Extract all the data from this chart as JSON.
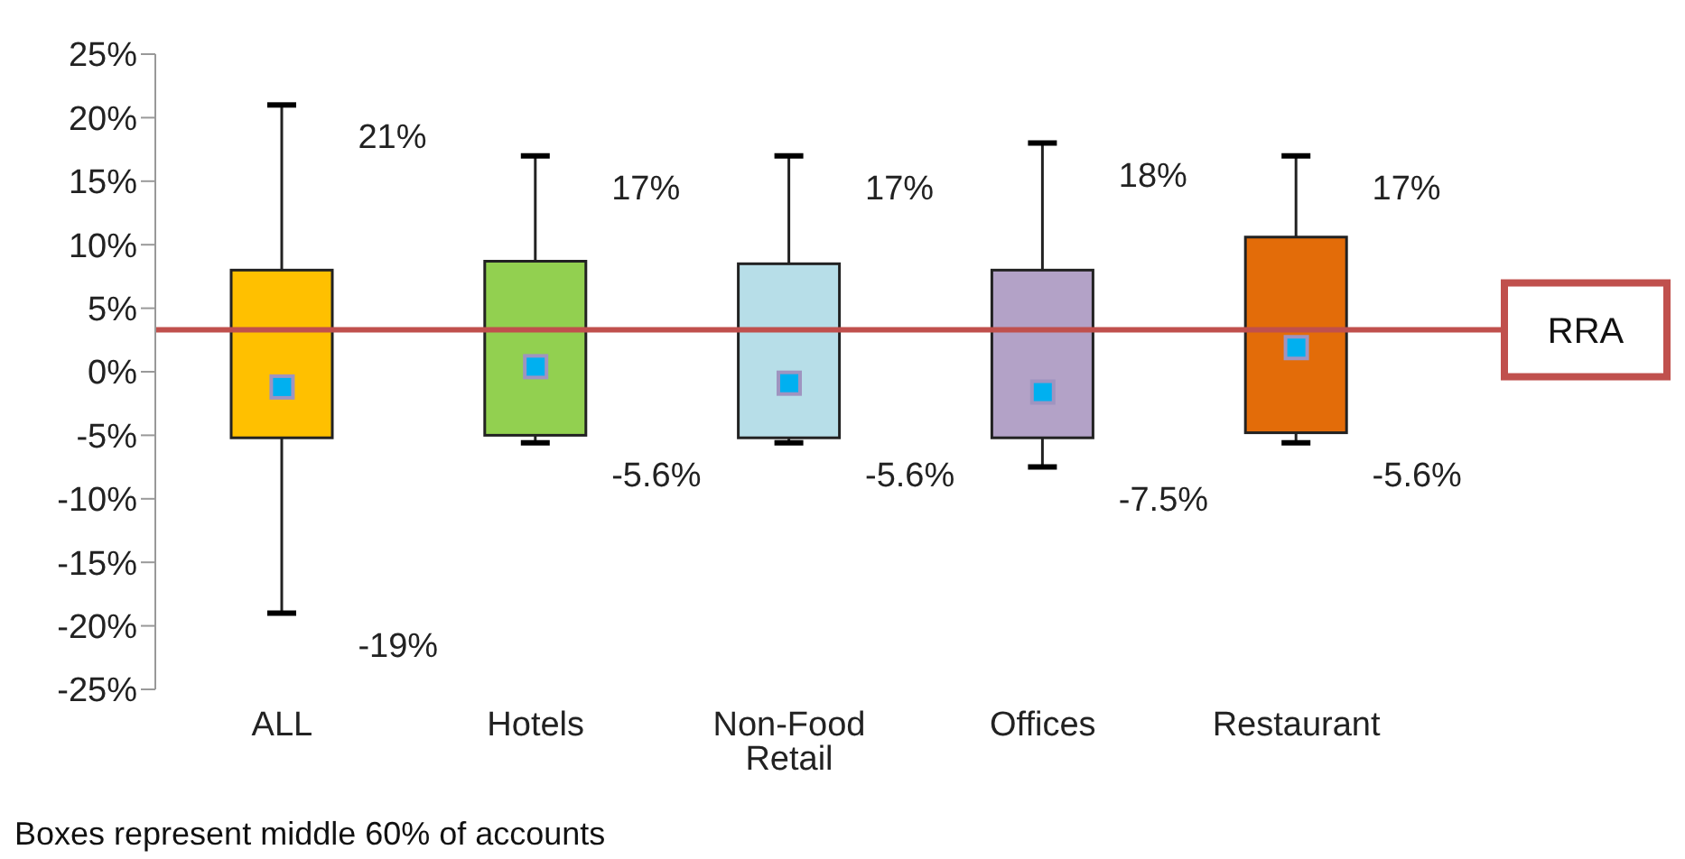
{
  "chart_data": {
    "type": "box",
    "categories": [
      "ALL",
      "Hotels",
      "Non-Food Retail",
      "Offices",
      "Restaurant"
    ],
    "boxes": [
      {
        "low": -19,
        "q1": -5.2,
        "median": -1.2,
        "q3": 8,
        "high": 21
      },
      {
        "low": -5.6,
        "q1": -5,
        "median": 0.4,
        "q3": 8.7,
        "high": 17
      },
      {
        "low": -5.6,
        "q1": -5.2,
        "median": -0.9,
        "q3": 8.5,
        "high": 17
      },
      {
        "low": -7.5,
        "q1": -5.2,
        "median": -1.6,
        "q3": 8,
        "high": 18
      },
      {
        "low": -5.6,
        "q1": -4.8,
        "median": 1.9,
        "q3": 10.6,
        "high": 17
      }
    ],
    "colors": [
      "#ffc000",
      "#92d050",
      "#b7dee8",
      "#b3a2c7",
      "#e36c09"
    ],
    "ylim": [
      -25,
      25
    ],
    "yticks": [
      {
        "value": -25,
        "label": "-25%"
      },
      {
        "value": -20,
        "label": "-20%"
      },
      {
        "value": -15,
        "label": "-15%"
      },
      {
        "value": -10,
        "label": "-10%"
      },
      {
        "value": -5,
        "label": "-5%"
      },
      {
        "value": 0,
        "label": "0%"
      },
      {
        "value": 5,
        "label": "5%"
      },
      {
        "value": 10,
        "label": "10%"
      },
      {
        "value": 15,
        "label": "15%"
      },
      {
        "value": 20,
        "label": "20%"
      },
      {
        "value": 25,
        "label": "25%"
      }
    ],
    "ref_lines": [
      {
        "axis": "y",
        "value": 3.3,
        "label": "RRA",
        "color": "#c0504d"
      }
    ],
    "annotations": [
      {
        "text": "21%",
        "x": "ALL",
        "y": 21
      },
      {
        "text": "-19%",
        "x": "ALL",
        "y": -19
      },
      {
        "text": "17%",
        "x": "Hotels",
        "y": 17
      },
      {
        "text": "-5.6%",
        "x": "Hotels",
        "y": -5.6
      },
      {
        "text": "17%",
        "x": "Non-Food Retail",
        "y": 17
      },
      {
        "text": "-5.6%",
        "x": "Non-Food Retail",
        "y": -5.6
      },
      {
        "text": "18%",
        "x": "Offices",
        "y": 18
      },
      {
        "text": "-7.5%",
        "x": "Offices",
        "y": -7.5
      },
      {
        "text": "17%",
        "x": "Restaurant",
        "y": 17
      },
      {
        "text": "-5.6%",
        "x": "Restaurant",
        "y": -5.6
      },
      "Boxes represent middle 60% of accounts"
    ]
  }
}
